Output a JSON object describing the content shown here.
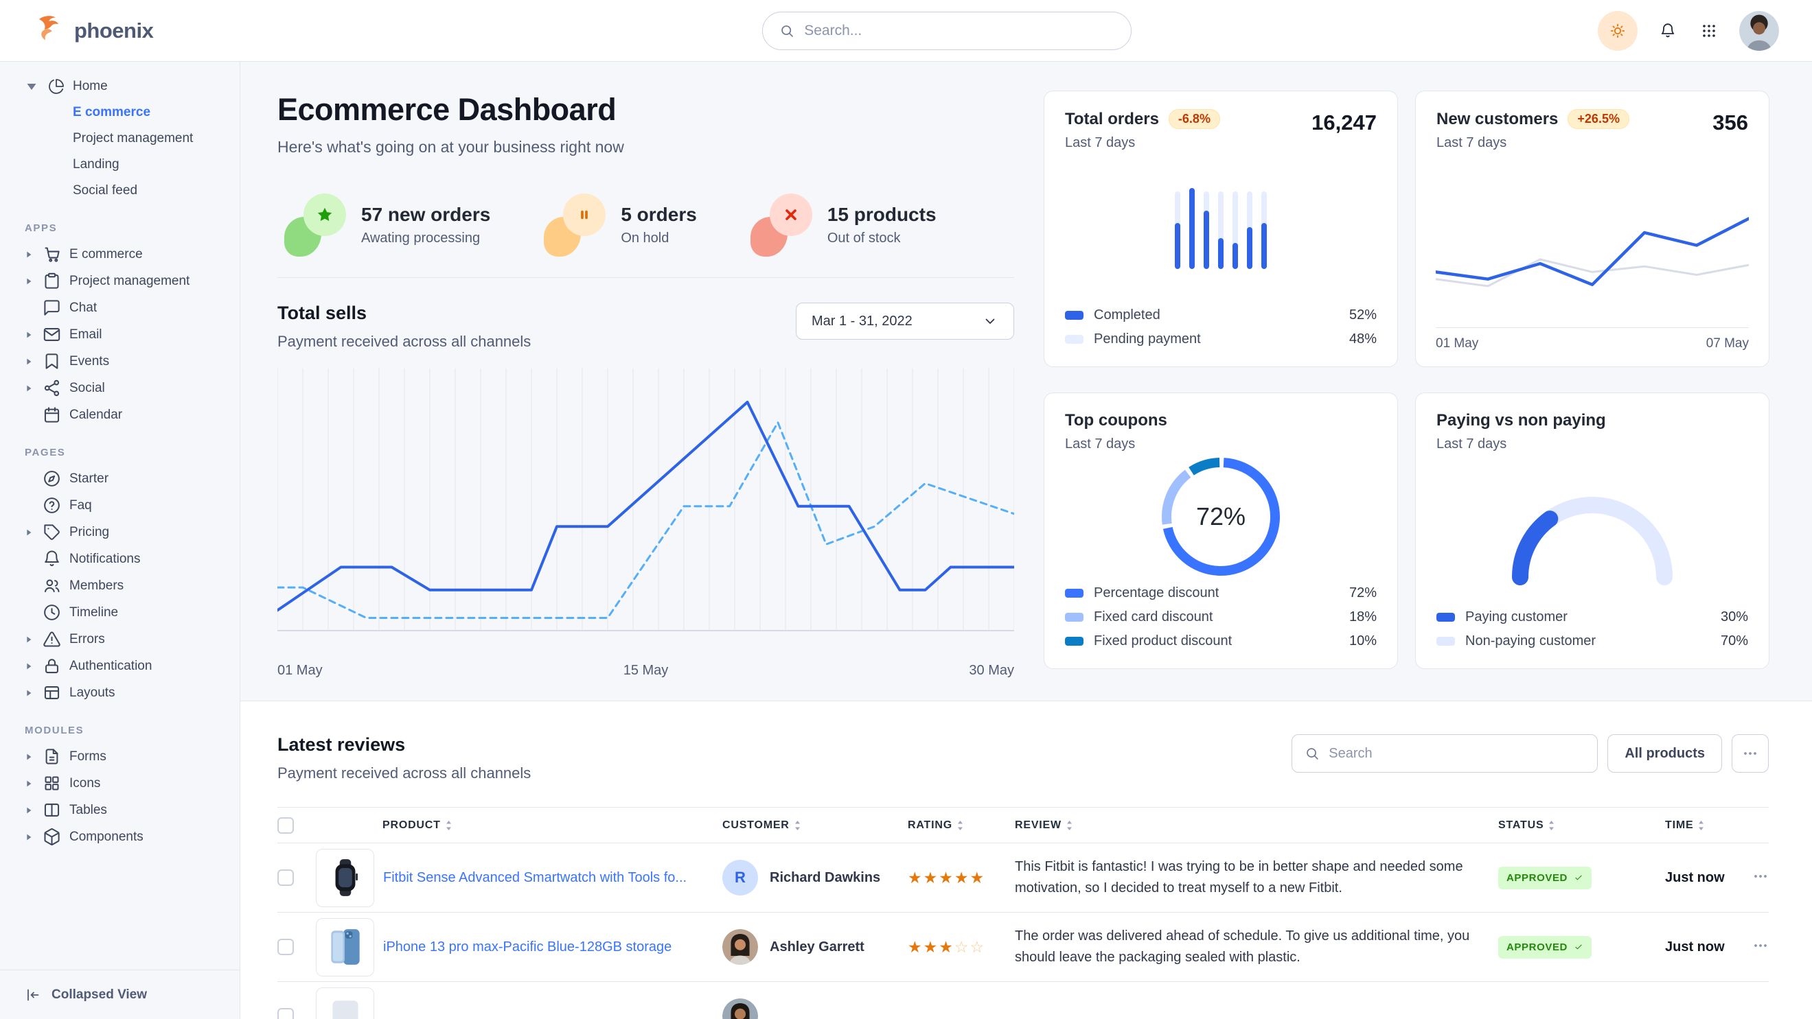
{
  "navbar": {
    "brand": "phoenix",
    "search_placeholder": "Search..."
  },
  "sidebar": {
    "home": {
      "label": "Home",
      "children": [
        {
          "label": "E commerce",
          "active": true
        },
        {
          "label": "Project management",
          "active": false
        },
        {
          "label": "Landing",
          "active": false
        },
        {
          "label": "Social feed",
          "active": false
        }
      ]
    },
    "sections": [
      {
        "title": "APPS",
        "items": [
          {
            "label": "E commerce",
            "icon": "cart-icon",
            "caret": true
          },
          {
            "label": "Project management",
            "icon": "clipboard-icon",
            "caret": true
          },
          {
            "label": "Chat",
            "icon": "chat-icon",
            "caret": false
          },
          {
            "label": "Email",
            "icon": "envelope-icon",
            "caret": true
          },
          {
            "label": "Events",
            "icon": "bookmark-icon",
            "caret": true
          },
          {
            "label": "Social",
            "icon": "share-icon",
            "caret": true
          },
          {
            "label": "Calendar",
            "icon": "calendar-icon",
            "caret": false
          }
        ]
      },
      {
        "title": "PAGES",
        "items": [
          {
            "label": "Starter",
            "icon": "compass-icon",
            "caret": false
          },
          {
            "label": "Faq",
            "icon": "question-circle-icon",
            "caret": false
          },
          {
            "label": "Pricing",
            "icon": "tag-icon",
            "caret": true
          },
          {
            "label": "Notifications",
            "icon": "bell-icon",
            "caret": false
          },
          {
            "label": "Members",
            "icon": "users-icon",
            "caret": false
          },
          {
            "label": "Timeline",
            "icon": "clock-icon",
            "caret": false
          },
          {
            "label": "Errors",
            "icon": "warning-icon",
            "caret": true
          },
          {
            "label": "Authentication",
            "icon": "lock-icon",
            "caret": true
          },
          {
            "label": "Layouts",
            "icon": "layout-icon",
            "caret": true
          }
        ]
      },
      {
        "title": "MODULES",
        "items": [
          {
            "label": "Forms",
            "icon": "file-text-icon",
            "caret": true
          },
          {
            "label": "Icons",
            "icon": "grid-icon",
            "caret": true
          },
          {
            "label": "Tables",
            "icon": "columns-icon",
            "caret": true
          },
          {
            "label": "Components",
            "icon": "package-icon",
            "caret": true
          }
        ]
      }
    ],
    "collapsed_label": "Collapsed View"
  },
  "page": {
    "title": "Ecommerce Dashboard",
    "subtitle": "Here's what's going on at your business right now"
  },
  "stats": [
    {
      "value": "57 new orders",
      "label": "Awating processing",
      "tone": "success",
      "icon": "star-icon",
      "colors": {
        "blob": "#90db7f",
        "circle": "#d2f7c5",
        "icon": "#1f9d0a"
      }
    },
    {
      "value": "5 orders",
      "label": "On hold",
      "tone": "warning",
      "icon": "pause-icon",
      "colors": {
        "blob": "#ffcc85",
        "circle": "#ffe9c8",
        "icon": "#d9700a"
      }
    },
    {
      "value": "15 products",
      "label": "Out of stock",
      "tone": "danger",
      "icon": "x-icon",
      "colors": {
        "blob": "#f5998a",
        "circle": "#ffd9d2",
        "icon": "#e02a0c"
      }
    }
  ],
  "total_sells": {
    "title": "Total sells",
    "subtitle": "Payment received across all channels",
    "range_label": "Mar 1 - 31, 2022"
  },
  "cards": {
    "total_orders": {
      "title": "Total orders",
      "badge": "-6.8%",
      "period": "Last 7 days",
      "value": "16,247",
      "legend": [
        {
          "label": "Completed",
          "value": "52%",
          "color": "#2e63e8"
        },
        {
          "label": "Pending payment",
          "value": "48%",
          "color": "#e5edff"
        }
      ]
    },
    "new_customers": {
      "title": "New customers",
      "badge": "+26.5%",
      "period": "Last 7 days",
      "value": "356",
      "x_left": "01 May",
      "x_right": "07 May"
    },
    "top_coupons": {
      "title": "Top coupons",
      "period": "Last 7 days",
      "center_label": "72%",
      "legend": [
        {
          "label": "Percentage discount",
          "value": "72%",
          "color": "#3874ff"
        },
        {
          "label": "Fixed card discount",
          "value": "18%",
          "color": "#9fbfff"
        },
        {
          "label": "Fixed product discount",
          "value": "10%",
          "color": "#0b7dc6"
        }
      ]
    },
    "paying": {
      "title": "Paying vs non paying",
      "period": "Last 7 days",
      "legend": [
        {
          "label": "Paying customer",
          "value": "30%",
          "color": "#2e63e8"
        },
        {
          "label": "Non-paying customer",
          "value": "70%",
          "color": "#e0e9ff"
        }
      ]
    }
  },
  "reviews": {
    "title": "Latest reviews",
    "subtitle": "Payment received across all channels",
    "search_placeholder": "Search",
    "filter_label": "All products",
    "table": {
      "headers": [
        "PRODUCT",
        "CUSTOMER",
        "RATING",
        "REVIEW",
        "STATUS",
        "TIME"
      ],
      "rows": [
        {
          "product": "Fitbit Sense Advanced Smartwatch with Tools fo...",
          "thumb": "watch",
          "customer": "Richard Dawkins",
          "avatar": {
            "type": "initial",
            "text": "R"
          },
          "rating": 5,
          "review": "This Fitbit is fantastic! I was trying to be in better shape and needed some motivation, so I decided to treat myself to a new Fitbit.",
          "status": "APPROVED",
          "time": "Just now"
        },
        {
          "product": "iPhone 13 pro max-Pacific Blue-128GB storage",
          "thumb": "iphone",
          "customer": "Ashley Garrett",
          "avatar": {
            "type": "photo"
          },
          "rating": 3,
          "review": "The order was delivered ahead of schedule. To give us additional time, you should leave the packaging sealed with plastic.",
          "status": "APPROVED",
          "time": "Just now"
        },
        {
          "partial": true,
          "thumb": "generic",
          "avatar": {
            "type": "photo2"
          }
        }
      ]
    }
  },
  "chart_data": [
    {
      "id": "total_sells",
      "type": "line",
      "title": "Total sells",
      "x_ticks": [
        "01 May",
        "15 May",
        "30 May"
      ],
      "x_range": [
        1,
        30
      ],
      "y_range": [
        0,
        100
      ],
      "grid": "vertical",
      "legend_position": "none",
      "series": [
        {
          "name": "current",
          "style": "solid",
          "color": "#2e63e8",
          "points": [
            [
              1,
              8
            ],
            [
              3.5,
              25
            ],
            [
              5.5,
              25
            ],
            [
              7,
              16
            ],
            [
              11,
              16
            ],
            [
              12,
              41
            ],
            [
              14,
              41
            ],
            [
              19.5,
              90
            ],
            [
              21.5,
              49
            ],
            [
              23.5,
              49
            ],
            [
              25.5,
              16
            ],
            [
              26.5,
              16
            ],
            [
              27.5,
              25
            ],
            [
              30,
              25
            ]
          ]
        },
        {
          "name": "previous",
          "style": "dashed",
          "color": "#55aef8",
          "points": [
            [
              1,
              17
            ],
            [
              2,
              17
            ],
            [
              4.5,
              5
            ],
            [
              14,
              5
            ],
            [
              17,
              49
            ],
            [
              18.8,
              49
            ],
            [
              20.7,
              82
            ],
            [
              22.6,
              34
            ],
            [
              24.5,
              41
            ],
            [
              26.5,
              58
            ],
            [
              30,
              46
            ]
          ]
        }
      ]
    },
    {
      "id": "total_orders_bars",
      "type": "bar",
      "categories": [
        "d1",
        "d2",
        "d3",
        "d4",
        "d5",
        "d6",
        "d7"
      ],
      "values": [
        59,
        104,
        75,
        40,
        34,
        54,
        59
      ],
      "track": 100,
      "colors": {
        "fill": "#2e63e8",
        "track": "#e5edff"
      },
      "note": "values are percent of full track height; legend Completed 52% / Pending payment 48%"
    },
    {
      "id": "new_customers_line",
      "type": "line",
      "x_ticks": [
        "01 May",
        "07 May"
      ],
      "y_range": [
        0,
        80
      ],
      "series": [
        {
          "name": "previous",
          "color": "#d8dce7",
          "values": [
            27,
            22,
            41,
            32,
            36,
            30,
            37
          ]
        },
        {
          "name": "current",
          "color": "#2e63e8",
          "values": [
            32,
            27,
            38,
            23,
            60,
            51,
            70
          ]
        }
      ]
    },
    {
      "id": "top_coupons_donut",
      "type": "pie",
      "center_label": "72%",
      "slices": [
        {
          "label": "Percentage discount",
          "value": 72,
          "color": "#3874ff"
        },
        {
          "label": "Fixed card discount",
          "value": 18,
          "color": "#9fbfff"
        },
        {
          "label": "Fixed product discount",
          "value": 10,
          "color": "#0b7dc6"
        }
      ]
    },
    {
      "id": "paying_gauge",
      "type": "pie",
      "variant": "half-donut",
      "slices": [
        {
          "label": "Paying customer",
          "value": 30,
          "color": "#2e63e8"
        },
        {
          "label": "Non-paying customer",
          "value": 70,
          "color": "#e0e9ff"
        }
      ]
    }
  ]
}
